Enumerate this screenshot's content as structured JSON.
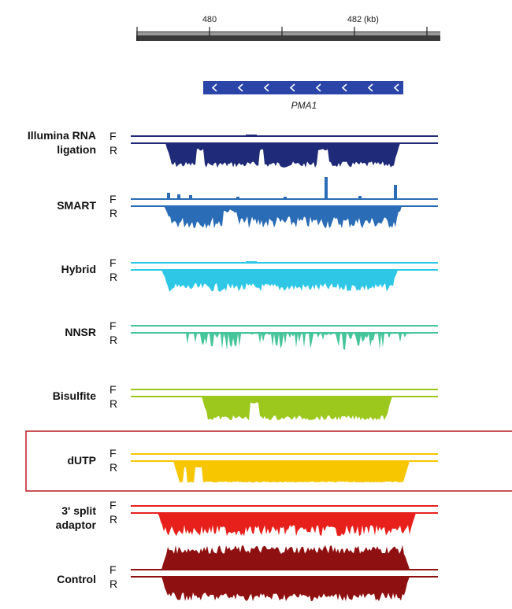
{
  "ruler": {
    "ticks": [
      {
        "value": 480,
        "label": "480"
      },
      {
        "value": 482,
        "label": "482"
      }
    ],
    "unit": "(kb)"
  },
  "gene": {
    "name": "PMA1",
    "color": "#2a44a8",
    "strand": "reverse"
  },
  "strand_labels": {
    "forward": "F",
    "reverse": "R"
  },
  "highlight": {
    "track": "dUTP",
    "color": "#c0272d"
  },
  "tracks": [
    {
      "id": "illumina",
      "label_lines": [
        "Illumina RNA",
        "ligation"
      ],
      "color": "#1f2a78",
      "forward_signal": 0.02,
      "reverse_signal": "strong"
    },
    {
      "id": "smart",
      "label_lines": [
        "SMART"
      ],
      "color": "#2a6cb5",
      "forward_signal": "peaks",
      "reverse_signal": "strong"
    },
    {
      "id": "hybrid",
      "label_lines": [
        "Hybrid"
      ],
      "color": "#2ec8e6",
      "forward_signal": 0.02,
      "reverse_signal": "strong"
    },
    {
      "id": "nnsr",
      "label_lines": [
        "NNSR"
      ],
      "color": "#46c49a",
      "forward_signal": 0,
      "reverse_signal": "sparse"
    },
    {
      "id": "bisulfite",
      "label_lines": [
        "Bisulfite"
      ],
      "color": "#9cc81e",
      "forward_signal": 0,
      "reverse_signal": "strong"
    },
    {
      "id": "dutp",
      "label_lines": [
        "dUTP"
      ],
      "color": "#f7c600",
      "forward_signal": 0,
      "reverse_signal": "strong"
    },
    {
      "id": "split",
      "label_lines": [
        "3' split",
        "adaptor"
      ],
      "color": "#e8201c",
      "forward_signal": 0,
      "reverse_signal": "strong"
    },
    {
      "id": "control",
      "label_lines": [
        "Control"
      ],
      "color": "#8f1010",
      "forward_signal": "strong",
      "reverse_signal": "strong"
    }
  ]
}
